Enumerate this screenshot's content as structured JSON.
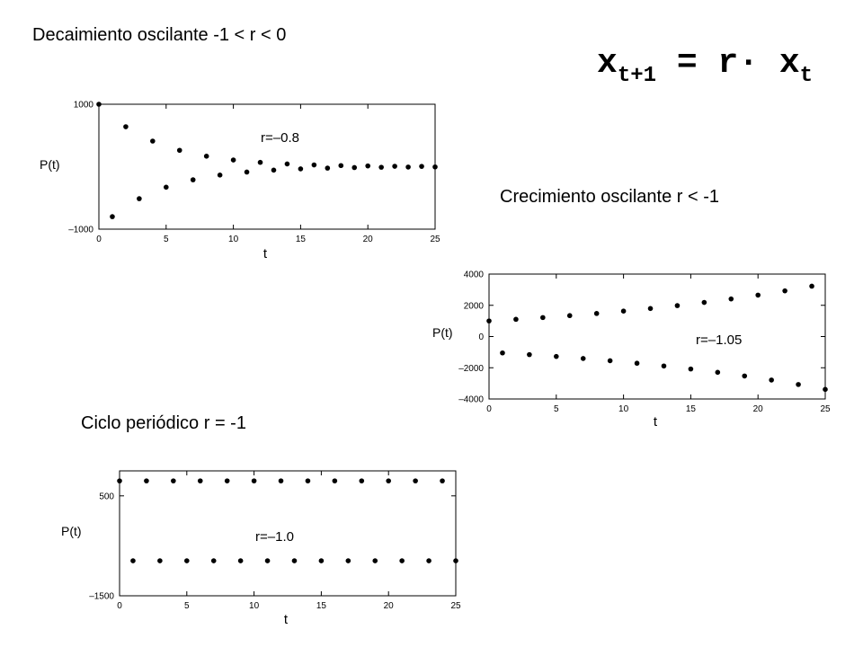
{
  "headings": {
    "decay": "Decaimiento oscilante -1 < r < 0",
    "growth": "Crecimiento oscilante r < -1",
    "cycle": "Ciclo periódico r = -1"
  },
  "formula": {
    "lhs": "x",
    "lhs_sub": "t+1",
    "mid": " = r· x",
    "rhs_sub": "t"
  },
  "chart_data": [
    {
      "type": "scatter",
      "id": "decay",
      "annotation": "r=–0.8",
      "xlabel": "t",
      "ylabel": "P(t)",
      "xlim": [
        0,
        25
      ],
      "ylim": [
        -1000,
        1000
      ],
      "xticks": [
        0,
        5,
        10,
        15,
        20,
        25
      ],
      "yticks": [
        {
          "value": 1000,
          "label": "1000"
        },
        {
          "value": -1000,
          "label": "–1000"
        }
      ],
      "x": [
        0,
        1,
        2,
        3,
        4,
        5,
        6,
        7,
        8,
        9,
        10,
        11,
        12,
        13,
        14,
        15,
        16,
        17,
        18,
        19,
        20,
        21,
        22,
        23,
        24,
        25
      ],
      "y": [
        1000,
        -800,
        640,
        -512,
        410,
        -328,
        262,
        -210,
        168,
        -134,
        107,
        -86,
        69,
        -55,
        44,
        -35,
        28,
        -23,
        18,
        -14,
        12,
        -9,
        7,
        -6,
        5,
        -4
      ]
    },
    {
      "type": "scatter",
      "id": "growth",
      "annotation": "r=–1.05",
      "xlabel": "t",
      "ylabel": "P(t)",
      "xlim": [
        0,
        25
      ],
      "ylim": [
        -4000,
        4000
      ],
      "xticks": [
        0,
        5,
        10,
        15,
        20,
        25
      ],
      "yticks": [
        {
          "value": 4000,
          "label": "4000"
        },
        {
          "value": 2000,
          "label": "2000"
        },
        {
          "value": 0,
          "label": "0"
        },
        {
          "value": -2000,
          "label": "–2000"
        },
        {
          "value": -4000,
          "label": "–4000"
        }
      ],
      "x": [
        0,
        1,
        2,
        3,
        4,
        5,
        6,
        7,
        8,
        9,
        10,
        11,
        12,
        13,
        14,
        15,
        16,
        17,
        18,
        19,
        20,
        21,
        22,
        23,
        24,
        25
      ],
      "y": [
        1000,
        -1050,
        1103,
        -1158,
        1216,
        -1276,
        1340,
        -1407,
        1477,
        -1551,
        1629,
        -1710,
        1796,
        -1886,
        1980,
        -2079,
        2183,
        -2292,
        2407,
        -2527,
        2653,
        -2786,
        2925,
        -3072,
        3225,
        -3386
      ]
    },
    {
      "type": "scatter",
      "id": "cycle",
      "annotation": "r=–1.0",
      "xlabel": "t",
      "ylabel": "P(t)",
      "xlim": [
        0,
        25
      ],
      "ylim": [
        -1500,
        1000
      ],
      "xticks": [
        0,
        5,
        10,
        15,
        20,
        25
      ],
      "yticks": [
        {
          "value": 500,
          "label": "500"
        },
        {
          "value": -1500,
          "label": "–1500"
        }
      ],
      "x": [
        0,
        1,
        2,
        3,
        4,
        5,
        6,
        7,
        8,
        9,
        10,
        11,
        12,
        13,
        14,
        15,
        16,
        17,
        18,
        19,
        20,
        21,
        22,
        23,
        24,
        25
      ],
      "y": [
        800,
        -800,
        800,
        -800,
        800,
        -800,
        800,
        -800,
        800,
        -800,
        800,
        -800,
        800,
        -800,
        800,
        -800,
        800,
        -800,
        800,
        -800,
        800,
        -800,
        800,
        -800,
        800,
        -800
      ]
    }
  ]
}
